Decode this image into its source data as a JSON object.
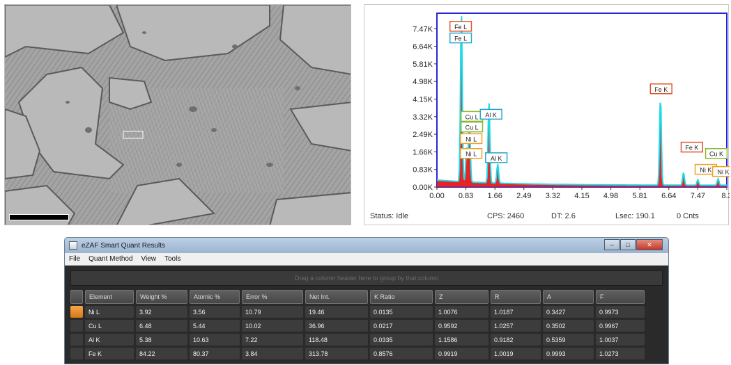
{
  "spectrum": {
    "chart_data": {
      "type": "line",
      "title": "",
      "xlabel": "",
      "ylabel": "",
      "x_ticks": [
        "0.00",
        "0.83",
        "1.66",
        "2.49",
        "3.32",
        "4.15",
        "4.98",
        "5.81",
        "6.64",
        "7.47",
        "8.3"
      ],
      "y_ticks": [
        "0.00K",
        "0.83K",
        "1.66K",
        "2.49K",
        "3.32K",
        "4.15K",
        "4.98K",
        "5.81K",
        "6.64K",
        "7.47K"
      ],
      "xlim": [
        0,
        8.3
      ],
      "ylim": [
        0,
        8.2
      ],
      "peaks": [
        {
          "x": 0.7,
          "y": 8.0
        },
        {
          "x": 0.93,
          "y": 3.0
        },
        {
          "x": 0.85,
          "y": 1.6
        },
        {
          "x": 1.49,
          "y": 3.8
        },
        {
          "x": 1.74,
          "y": 0.9
        },
        {
          "x": 6.4,
          "y": 4.15
        },
        {
          "x": 7.06,
          "y": 0.6
        },
        {
          "x": 7.47,
          "y": 0.25
        },
        {
          "x": 8.05,
          "y": 0.3
        }
      ],
      "annotations": [
        {
          "text": "Fe L",
          "x": 0.68,
          "y": 7.55,
          "color": "#e0552a"
        },
        {
          "text": "Fe L",
          "x": 0.68,
          "y": 7.0,
          "color": "#2aa6c9"
        },
        {
          "text": "Cu L",
          "x": 1.0,
          "y": 3.3,
          "color": "#8db832"
        },
        {
          "text": "Cu L",
          "x": 1.0,
          "y": 2.8,
          "color": "#8db832"
        },
        {
          "text": "Ni L",
          "x": 0.98,
          "y": 2.25,
          "color": "#f0a020"
        },
        {
          "text": "Ni L",
          "x": 0.98,
          "y": 1.55,
          "color": "#f0a020"
        },
        {
          "text": "Al K",
          "x": 1.55,
          "y": 3.4,
          "color": "#2aa6c9"
        },
        {
          "text": "Al K",
          "x": 1.7,
          "y": 1.35,
          "color": "#2aa6c9"
        },
        {
          "text": "Fe K",
          "x": 6.42,
          "y": 4.6,
          "color": "#e0552a"
        },
        {
          "text": "Fe K",
          "x": 7.3,
          "y": 1.85,
          "color": "#e0552a"
        },
        {
          "text": "Cu K",
          "x": 8.0,
          "y": 1.55,
          "color": "#8db832"
        },
        {
          "text": "Ni K",
          "x": 7.7,
          "y": 0.8,
          "color": "#f0a020"
        },
        {
          "text": "Ni K",
          "x": 8.2,
          "y": 0.7,
          "color": "#f0a020"
        }
      ],
      "colors": {
        "fill": "#e31212",
        "line": "#1fd9e6",
        "frame": "#2626d9"
      }
    },
    "status": {
      "state": "Status: Idle",
      "cps": "CPS: 2460",
      "dt": "DT: 2.6",
      "lsec": "Lsec: 190.1",
      "cnts": "0 Cnts"
    }
  },
  "results": {
    "title": "eZAF Smart Quant Results",
    "menu": [
      "File",
      "Quant Method",
      "View",
      "Tools"
    ],
    "group_hint": "Drag a column header here to group by that column",
    "columns": [
      "Element",
      "Weight %",
      "Atomic %",
      "Error %",
      "Net Int.",
      "K Ratio",
      "Z",
      "R",
      "A",
      "F"
    ],
    "rows": [
      [
        "Ni L",
        "3.92",
        "3.56",
        "10.79",
        "19.46",
        "0.0135",
        "1.0076",
        "1.0187",
        "0.3427",
        "0.9973"
      ],
      [
        "Cu L",
        "6.48",
        "5.44",
        "10.02",
        "36.96",
        "0.0217",
        "0.9592",
        "1.0257",
        "0.3502",
        "0.9967"
      ],
      [
        "Al K",
        "5.38",
        "10.63",
        "7.22",
        "118.48",
        "0.0335",
        "1.1586",
        "0.9182",
        "0.5359",
        "1.0037"
      ],
      [
        "Fe K",
        "84.22",
        "80.37",
        "3.84",
        "313.78",
        "0.8576",
        "0.9919",
        "1.0019",
        "0.9993",
        "1.0273"
      ]
    ]
  }
}
